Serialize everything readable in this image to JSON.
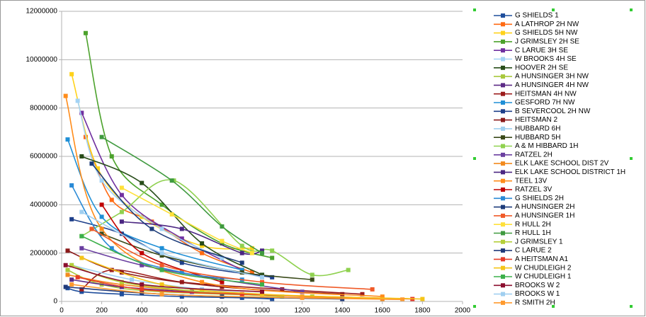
{
  "chart_data": {
    "type": "line",
    "smooth": true,
    "xlim": [
      0,
      2000
    ],
    "xticks": [
      0,
      200,
      400,
      600,
      800,
      1000,
      1200,
      1400,
      1600,
      1800,
      2000
    ],
    "ylim": [
      0,
      12000000
    ],
    "yticks": [
      0,
      2000000,
      4000000,
      6000000,
      8000000,
      10000000,
      12000000
    ],
    "grid": true,
    "legend": "right",
    "series": [
      {
        "name": "G SHIELDS 1",
        "color": "#1f4e9c",
        "x": [
          30,
          100,
          300,
          600,
          900,
          1050
        ],
        "values": [
          550000,
          400000,
          300000,
          200000,
          150000,
          100000
        ]
      },
      {
        "name": "A LATHROP 2H NW",
        "color": "#ff6a13",
        "x": [
          120,
          250,
          450,
          700,
          950
        ],
        "values": [
          6800000,
          4200000,
          3300000,
          2000000,
          1200000
        ]
      },
      {
        "name": "G SHIELDS 5H NW",
        "color": "#ffd21a",
        "x": [
          50,
          180,
          400,
          700,
          950
        ],
        "values": [
          9400000,
          5500000,
          3500000,
          2300000,
          2200000
        ]
      },
      {
        "name": "J GRIMSLEY 2H SE",
        "color": "#4ca22c",
        "x": [
          120,
          250,
          500,
          800,
          1050
        ],
        "values": [
          11100000,
          6000000,
          4000000,
          2400000,
          1800000
        ]
      },
      {
        "name": "C LARUE 3H SE",
        "color": "#7030a0",
        "x": [
          100,
          300,
          600,
          900
        ],
        "values": [
          7800000,
          4400000,
          2600000,
          1300000
        ]
      },
      {
        "name": "W BROOKS 4H SE",
        "color": "#a3d3f5",
        "x": [
          80,
          200,
          500,
          800
        ],
        "values": [
          8300000,
          5000000,
          3000000,
          1800000
        ]
      },
      {
        "name": "HOOVER 2H SE",
        "color": "#284d1a",
        "x": [
          100,
          400,
          700,
          1000
        ],
        "values": [
          6000000,
          4900000,
          2400000,
          1100000
        ]
      },
      {
        "name": "A HUNSINGER 3H NW",
        "color": "#a8c83c",
        "x": [
          30,
          200,
          500,
          1250
        ],
        "values": [
          1300000,
          700000,
          400000,
          200000
        ]
      },
      {
        "name": "A HUNSINGER 4H NW",
        "color": "#5b2a86",
        "x": [
          50,
          300,
          650,
          1000
        ],
        "values": [
          900000,
          600000,
          400000,
          300000
        ]
      },
      {
        "name": "HEITSMAN 4H NW",
        "color": "#9c1c1c",
        "x": [
          100,
          250,
          600,
          1100,
          1500
        ],
        "values": [
          500000,
          1300000,
          800000,
          500000,
          300000
        ]
      },
      {
        "name": "GESFORD 7H NW",
        "color": "#1f8fd6",
        "x": [
          30,
          200,
          500,
          900
        ],
        "values": [
          6700000,
          3500000,
          2200000,
          1300000
        ]
      },
      {
        "name": "B SEVERCOOL 2H NW",
        "color": "#1e3f8a",
        "x": [
          50,
          300,
          600,
          1050
        ],
        "values": [
          3400000,
          2800000,
          1600000,
          1000000
        ]
      },
      {
        "name": "HEITSMAN 2",
        "color": "#8b1a1a",
        "x": [
          30,
          300,
          800,
          1400
        ],
        "values": [
          2100000,
          1200000,
          600000,
          300000
        ]
      },
      {
        "name": "HUBBARD 6H",
        "color": "#9fd0f0",
        "x": [
          50,
          350,
          700,
          1000
        ],
        "values": [
          1500000,
          900000,
          500000,
          300000
        ]
      },
      {
        "name": "HUBBARD 5H",
        "color": "#3a4a1a",
        "x": [
          200,
          500,
          900,
          1250
        ],
        "values": [
          2800000,
          1900000,
          1200000,
          900000
        ]
      },
      {
        "name": "A & M HIBBARD 1H",
        "color": "#8fd14f",
        "x": [
          100,
          300,
          560,
          900,
          1050,
          1250,
          1430
        ],
        "values": [
          2700000,
          3700000,
          5000000,
          2300000,
          2100000,
          1100000,
          1300000
        ]
      },
      {
        "name": "RATZEL 2H",
        "color": "#6a3fa0",
        "x": [
          100,
          400,
          800,
          1200
        ],
        "values": [
          2200000,
          1500000,
          900000,
          400000
        ]
      },
      {
        "name": "ELK LAKE SCHOOL DIST 2V",
        "color": "#f28a1e",
        "x": [
          30,
          300,
          700,
          1200,
          1600
        ],
        "values": [
          1100000,
          700000,
          400000,
          200000,
          100000
        ]
      },
      {
        "name": "ELK LAKE SCHOOL DISTRICT 1H",
        "color": "#4b2682",
        "x": [
          300,
          600,
          900,
          1000
        ],
        "values": [
          3300000,
          3000000,
          2000000,
          2100000
        ]
      },
      {
        "name": "TEEL 13V",
        "color": "#ff8c1a",
        "x": [
          20,
          200,
          700,
          1600
        ],
        "values": [
          8500000,
          3000000,
          800000,
          200000
        ]
      },
      {
        "name": "RATZEL 3V",
        "color": "#c00000",
        "x": [
          200,
          400,
          800
        ],
        "values": [
          4000000,
          2000000,
          800000
        ]
      },
      {
        "name": "G SHIELDS 2H",
        "color": "#2a8ad6",
        "x": [
          50,
          250,
          600,
          900
        ],
        "values": [
          4800000,
          2200000,
          1200000,
          900000
        ]
      },
      {
        "name": "A HUNSINGER 2H",
        "color": "#1d3c7a",
        "x": [
          150,
          450,
          900
        ],
        "values": [
          5700000,
          3000000,
          1600000
        ]
      },
      {
        "name": "A HUNSINGER 1H",
        "color": "#f05a28",
        "x": [
          150,
          500,
          1000,
          1550
        ],
        "values": [
          3000000,
          1500000,
          800000,
          500000
        ]
      },
      {
        "name": "R HULL 2H",
        "color": "#ffe03a",
        "x": [
          300,
          550,
          800,
          950
        ],
        "values": [
          4700000,
          3600000,
          2500000,
          2000000
        ]
      },
      {
        "name": "R HULL 1H",
        "color": "#3f9a3f",
        "x": [
          200,
          550,
          800,
          1000
        ],
        "values": [
          6800000,
          5000000,
          3100000,
          2000000
        ]
      },
      {
        "name": "J GRIMSLEY 1",
        "color": "#b5cf3a",
        "x": [
          50,
          300,
          700,
          1100
        ],
        "values": [
          1500000,
          800000,
          400000,
          200000
        ]
      },
      {
        "name": "C LARUE 2",
        "color": "#203a7a",
        "x": [
          20,
          400,
          800,
          1400
        ],
        "values": [
          600000,
          350000,
          200000,
          100000
        ]
      },
      {
        "name": "A HEITSMAN A1",
        "color": "#e63c28",
        "x": [
          80,
          400,
          900,
          1750
        ],
        "values": [
          1000000,
          500000,
          300000,
          100000
        ]
      },
      {
        "name": "W CHUDLEIGH 2",
        "color": "#f5c518",
        "x": [
          100,
          500,
          1000,
          1800
        ],
        "values": [
          1800000,
          700000,
          300000,
          100000
        ]
      },
      {
        "name": "W CHUDLEIGH 1",
        "color": "#3cb04a",
        "x": [
          100,
          500,
          1000
        ],
        "values": [
          2700000,
          1300000,
          700000
        ]
      },
      {
        "name": "BROOKS W 2",
        "color": "#8b0e2e",
        "x": [
          20,
          400,
          1000
        ],
        "values": [
          1500000,
          700000,
          400000
        ]
      },
      {
        "name": "BROOKS W 1",
        "color": "#a0cff0",
        "x": [
          100,
          500,
          1000
        ],
        "values": [
          3700000,
          2000000,
          1000000
        ]
      },
      {
        "name": "R SMITH 2H",
        "color": "#ff9a2e",
        "x": [
          50,
          500,
          1200,
          1700
        ],
        "values": [
          700000,
          300000,
          150000,
          80000
        ]
      }
    ]
  }
}
